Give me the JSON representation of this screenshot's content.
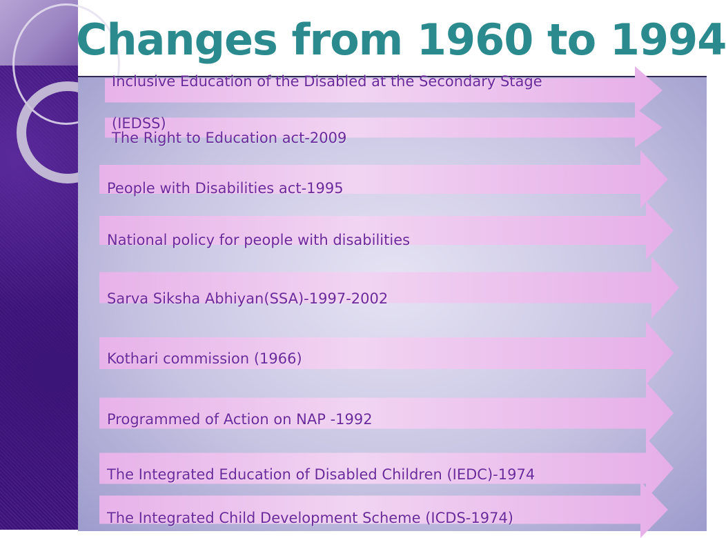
{
  "slide": {
    "title": "Changes from 1960 to 1994",
    "items": [
      {
        "label": "Inclusive Education of the Disabled at the Secondary Stage"
      },
      {
        "label": "(IEDSS)"
      },
      {
        "label": "The Right to Education act-2009"
      },
      {
        "label": "People with Disabilities act-1995"
      },
      {
        "label": "National policy for people with disabilities"
      },
      {
        "label": "Sarva Siksha Abhiyan(SSA)-1997-2002"
      },
      {
        "label": "Kothari commission (1966)"
      },
      {
        "label": "Programmed of Action on NAP -1992"
      },
      {
        "label": "The Integrated Education of Disabled Children (IEDC)-1974"
      },
      {
        "label": "The Integrated Child Development Scheme (ICDS-1974)"
      }
    ]
  },
  "colors": {
    "title": "#2a8a8e",
    "label": "#6a2a9c",
    "arrow": "#e7b2e9",
    "left_band": "#3d1478",
    "panel": "#c7c4e2"
  }
}
